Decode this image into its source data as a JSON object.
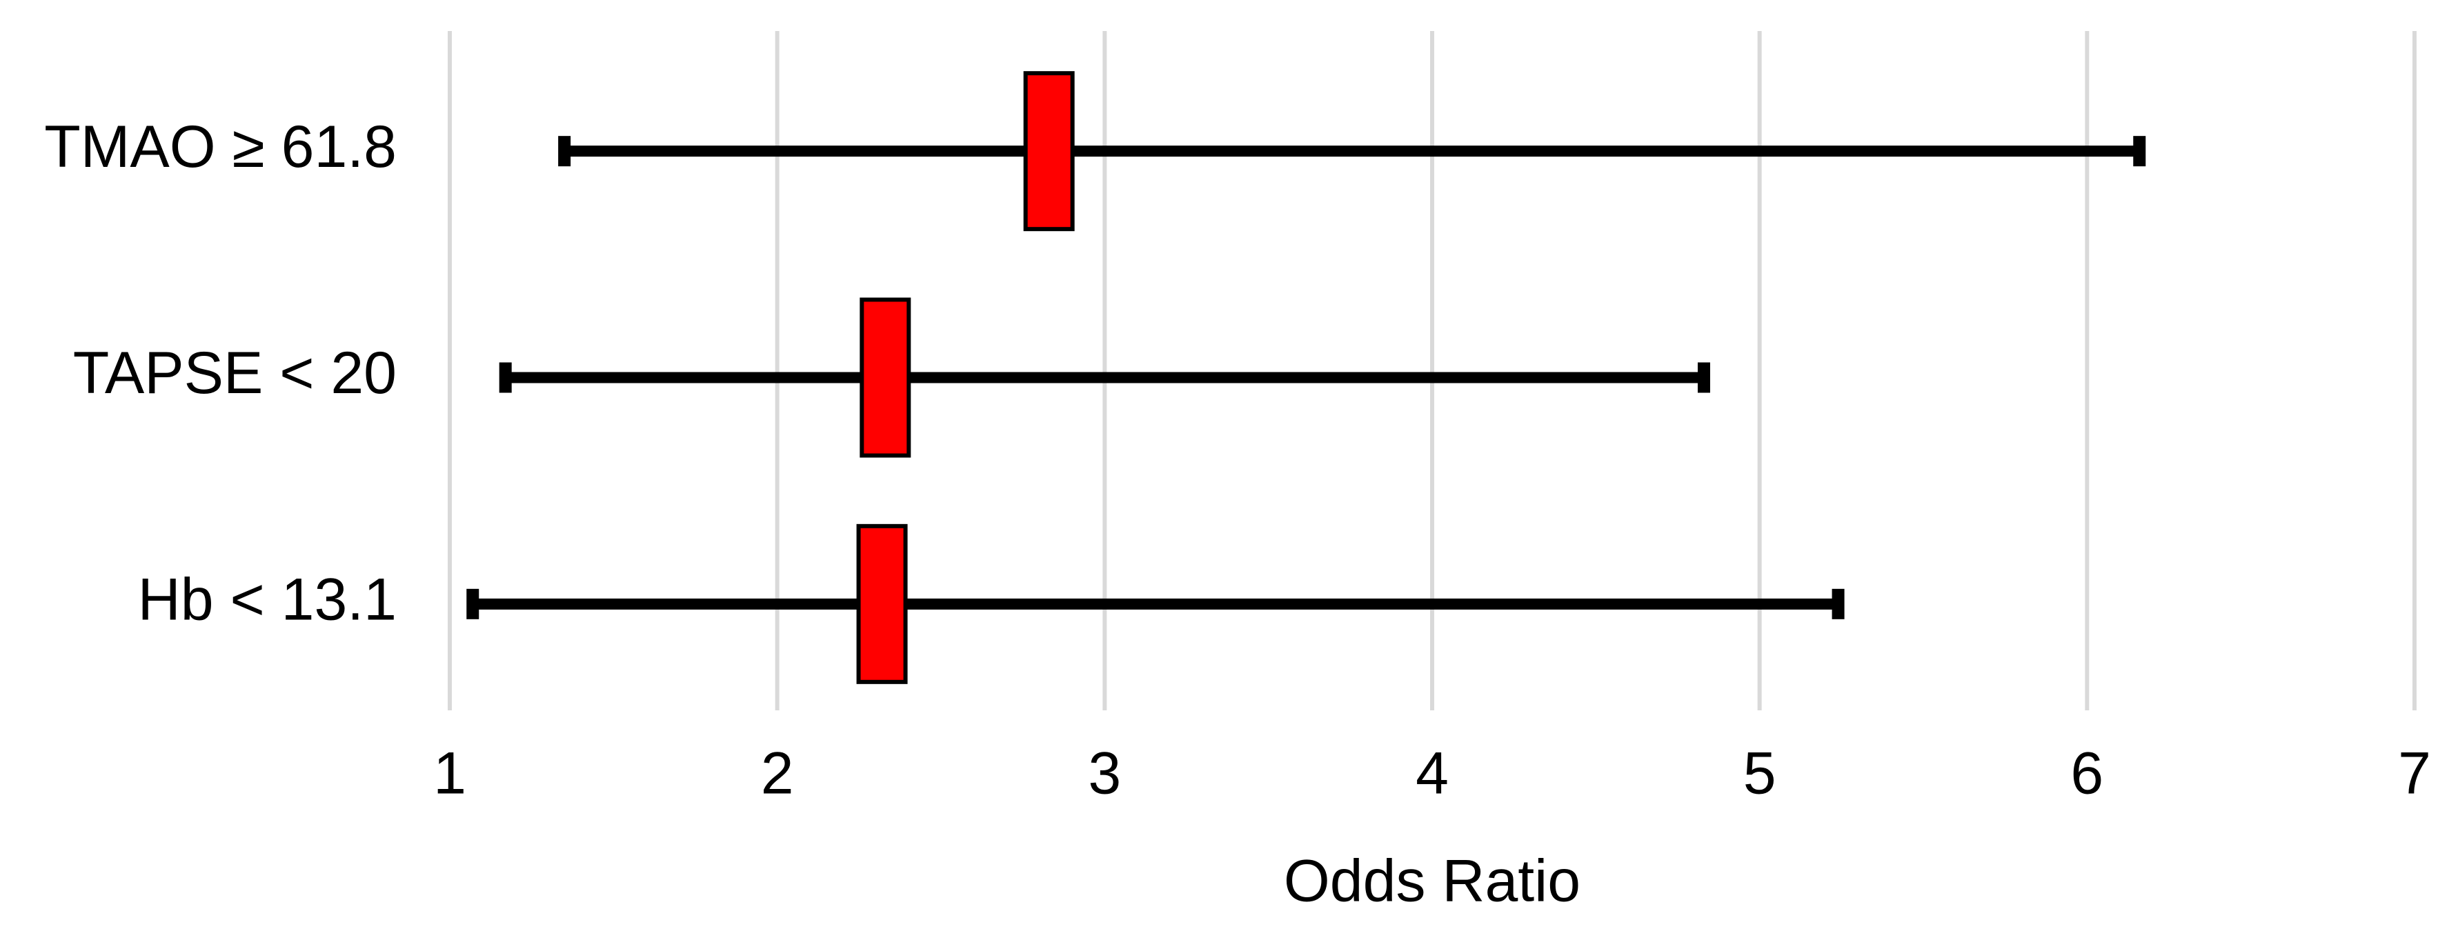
{
  "chart_data": {
    "type": "forest",
    "categories": [
      "TMAO ≥ 61.8",
      "TAPSE < 20",
      "Hb < 13.1"
    ],
    "values": [
      2.83,
      2.33,
      2.32
    ],
    "ci_lower": [
      1.35,
      1.17,
      1.07
    ],
    "ci_upper": [
      6.16,
      4.83,
      5.24
    ],
    "color": "#ff0000",
    "xlabel": "Odds Ratio",
    "xlim": [
      1,
      7
    ],
    "xticks": [
      1,
      2,
      3,
      4,
      5,
      6,
      7
    ],
    "grid": true
  }
}
